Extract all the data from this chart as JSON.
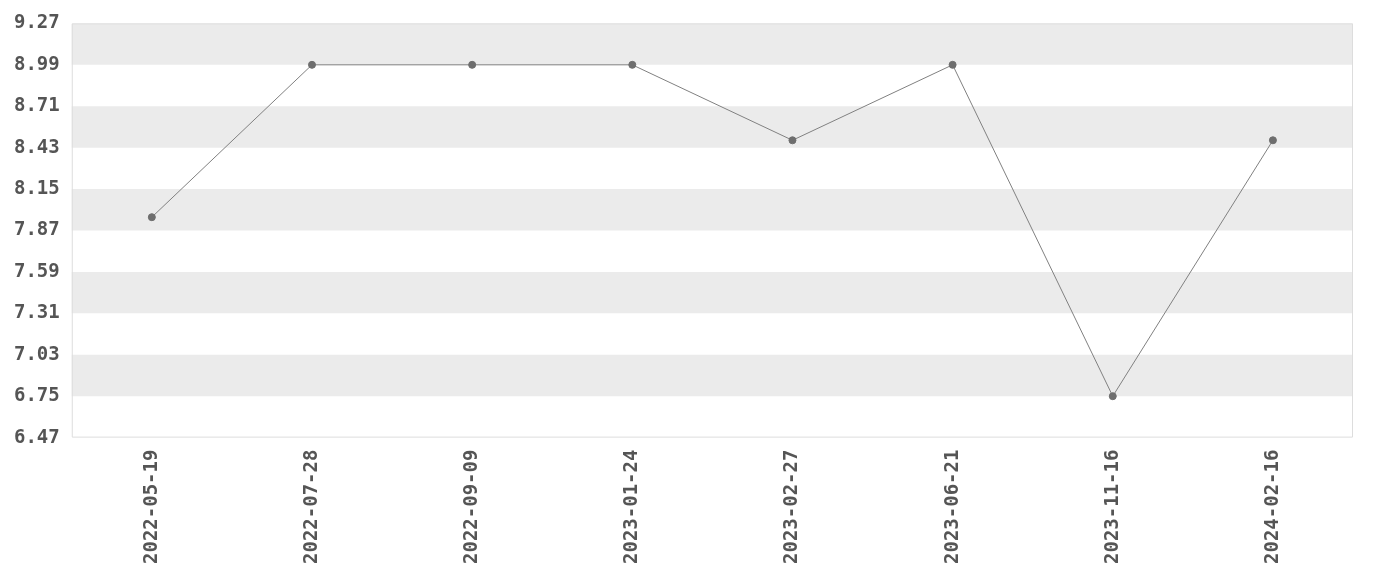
{
  "chart_data": {
    "type": "line",
    "categories": [
      "2022-05-19",
      "2022-07-28",
      "2022-09-09",
      "2023-01-24",
      "2023-02-27",
      "2023-06-21",
      "2023-11-16",
      "2024-02-16"
    ],
    "series": [
      {
        "color": "#808080",
        "values": [
          7.96,
          8.99,
          8.99,
          8.99,
          8.48,
          8.99,
          6.75,
          8.48
        ]
      }
    ],
    "ylim": [
      6.47,
      9.27
    ],
    "yticks": [
      6.47,
      6.75,
      7.03,
      7.31,
      7.59,
      7.87,
      8.15,
      8.43,
      8.71,
      8.99,
      9.27
    ],
    "bands": [
      {
        "axis": "y",
        "from": 8.99,
        "to": 9.27,
        "color": "#ebebeb"
      },
      {
        "axis": "y",
        "from": 8.43,
        "to": 8.71,
        "color": "#ebebeb"
      },
      {
        "axis": "y",
        "from": 7.87,
        "to": 8.15,
        "color": "#ebebeb"
      },
      {
        "axis": "y",
        "from": 7.31,
        "to": 7.59,
        "color": "#ebebeb"
      },
      {
        "axis": "y",
        "from": 6.75,
        "to": 7.03,
        "color": "#ebebeb"
      }
    ],
    "grid": false,
    "legend": false,
    "marker": "circle",
    "line_style": "solid"
  }
}
